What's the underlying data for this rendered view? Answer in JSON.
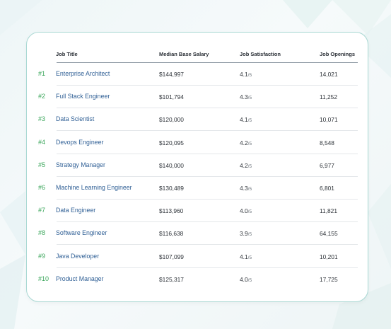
{
  "table": {
    "headers": {
      "job_title": "Job Title",
      "median_base_salary": "Median Base Salary",
      "job_satisfaction": "Job Satisfaction",
      "job_openings": "Job Openings"
    },
    "rows": [
      {
        "rank": "#1",
        "title": "Enterprise Architect",
        "salary": "$144,997",
        "satisfaction": "4.1",
        "sat_denom": "/5",
        "openings": "14,021"
      },
      {
        "rank": "#2",
        "title": "Full Stack Engineer",
        "salary": "$101,794",
        "satisfaction": "4.3",
        "sat_denom": "/5",
        "openings": "11,252"
      },
      {
        "rank": "#3",
        "title": "Data Scientist",
        "salary": "$120,000",
        "satisfaction": "4.1",
        "sat_denom": "/5",
        "openings": "10,071"
      },
      {
        "rank": "#4",
        "title": "Devops Engineer",
        "salary": "$120,095",
        "satisfaction": "4.2",
        "sat_denom": "/5",
        "openings": "8,548"
      },
      {
        "rank": "#5",
        "title": "Strategy Manager",
        "salary": "$140,000",
        "satisfaction": "4.2",
        "sat_denom": "/5",
        "openings": "6,977"
      },
      {
        "rank": "#6",
        "title": "Machine Learning Engineer",
        "salary": "$130,489",
        "satisfaction": "4.3",
        "sat_denom": "/5",
        "openings": "6,801"
      },
      {
        "rank": "#7",
        "title": "Data Engineer",
        "salary": "$113,960",
        "satisfaction": "4.0",
        "sat_denom": "/5",
        "openings": "11,821"
      },
      {
        "rank": "#8",
        "title": "Software Engineer",
        "salary": "$116,638",
        "satisfaction": "3.9",
        "sat_denom": "/5",
        "openings": "64,155"
      },
      {
        "rank": "#9",
        "title": "Java Developer",
        "salary": "$107,099",
        "satisfaction": "4.1",
        "sat_denom": "/5",
        "openings": "10,201"
      },
      {
        "rank": "#10",
        "title": "Product Manager",
        "salary": "$125,317",
        "satisfaction": "4.0",
        "sat_denom": "/5",
        "openings": "17,725"
      }
    ]
  },
  "colors": {
    "rank": "#3aa65a",
    "job_title_link": "#2f5f95",
    "card_border": "#a9d8d3"
  }
}
